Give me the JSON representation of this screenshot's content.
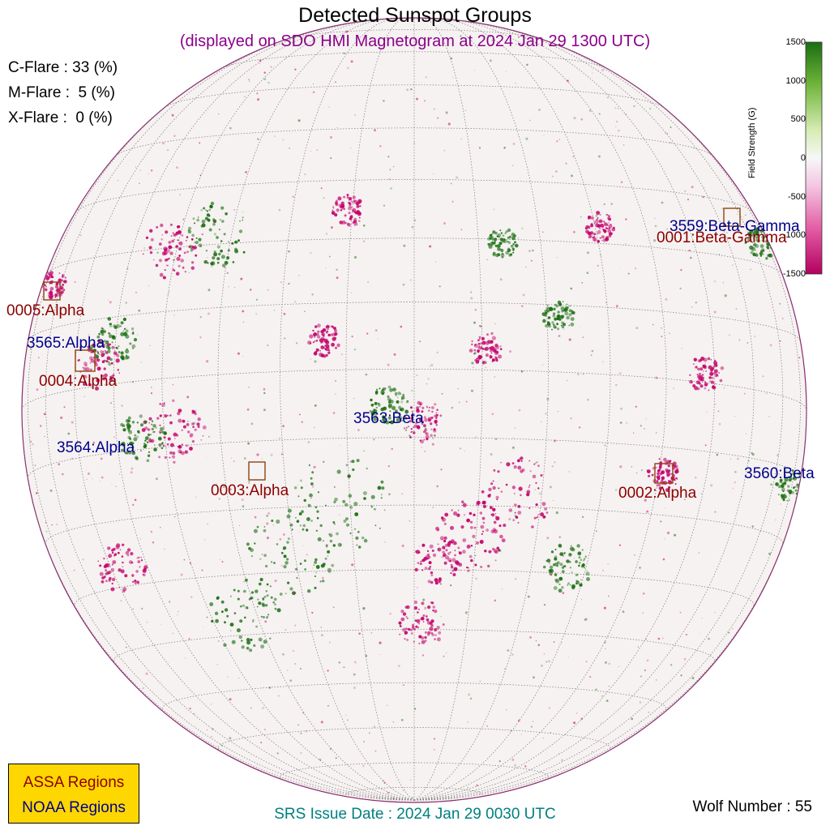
{
  "header": {
    "title": "Detected Sunspot Groups",
    "subtitle": "(displayed on SDO HMI Magnetogram at 2024 Jan 29 1300 UTC)"
  },
  "flare_probabilities": [
    {
      "label": "C-Flare : 33 (%)",
      "value": 33
    },
    {
      "label": "M-Flare :  5 (%)",
      "value": 5
    },
    {
      "label": "X-Flare :  0 (%)",
      "value": 0
    }
  ],
  "colorbar": {
    "label": "Field Strength (G)",
    "ticks": [
      "1500",
      "1000",
      "500",
      "0",
      "-500",
      "-1000",
      "-1500"
    ],
    "colors": {
      "positive": "#1a6e12",
      "mid": "#f7f7f7",
      "negative": "#c2006a"
    }
  },
  "regions": {
    "assa": [
      {
        "label": "0001:Beta-Gamma"
      },
      {
        "label": "0002:Alpha"
      },
      {
        "label": "0003:Alpha"
      },
      {
        "label": "0004:Alpha"
      },
      {
        "label": "0005:Alpha"
      }
    ],
    "noaa": [
      {
        "label": "3559:Beta-Gamma"
      },
      {
        "label": "3560:Beta"
      },
      {
        "label": "3563:Beta"
      },
      {
        "label": "3564:Alpha"
      },
      {
        "label": "3565:Alpha"
      }
    ]
  },
  "legend": {
    "assa_label": "ASSA Regions",
    "noaa_label": "NOAA Regions",
    "assa_color": "#8b0000",
    "noaa_color": "#00008b",
    "box_color": "#ffd700"
  },
  "footer": {
    "srs_issue": "SRS Issue Date : 2024 Jan 29 0030 UTC",
    "wolf_number": "Wolf Number : 55"
  }
}
